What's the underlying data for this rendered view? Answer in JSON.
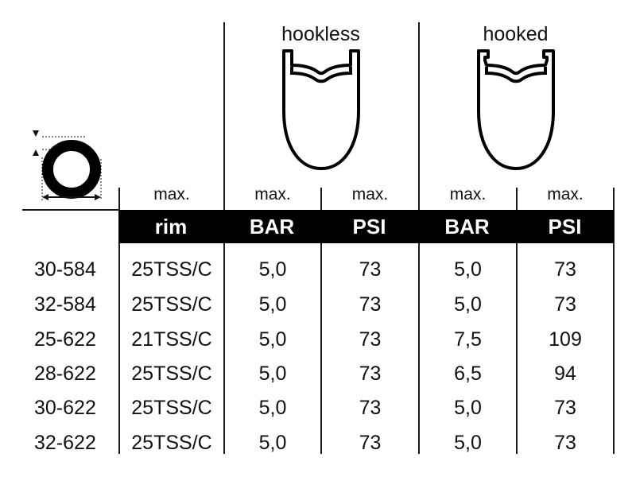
{
  "groups": {
    "hookless": "hookless",
    "hooked": "hooked"
  },
  "max_labels": [
    "max.",
    "max.",
    "max.",
    "max.",
    "max."
  ],
  "headers": [
    "rim",
    "BAR",
    "PSI",
    "BAR",
    "PSI"
  ],
  "rows": [
    {
      "size": "30-584",
      "rim": "25TSS/C",
      "hookless_bar": "5,0",
      "hookless_psi": "73",
      "hooked_bar": "5,0",
      "hooked_psi": "73"
    },
    {
      "size": "32-584",
      "rim": "25TSS/C",
      "hookless_bar": "5,0",
      "hookless_psi": "73",
      "hooked_bar": "5,0",
      "hooked_psi": "73"
    },
    {
      "size": "25-622",
      "rim": "21TSS/C",
      "hookless_bar": "5,0",
      "hookless_psi": "73",
      "hooked_bar": "7,5",
      "hooked_psi": "109"
    },
    {
      "size": "28-622",
      "rim": "25TSS/C",
      "hookless_bar": "5,0",
      "hookless_psi": "73",
      "hooked_bar": "6,5",
      "hooked_psi": "94"
    },
    {
      "size": "30-622",
      "rim": "25TSS/C",
      "hookless_bar": "5,0",
      "hookless_psi": "73",
      "hooked_bar": "5,0",
      "hooked_psi": "73"
    },
    {
      "size": "32-622",
      "rim": "25TSS/C",
      "hookless_bar": "5,0",
      "hookless_psi": "73",
      "hooked_bar": "5,0",
      "hooked_psi": "73"
    }
  ],
  "icons": {
    "tire": "tire-cross-section-icon",
    "hookless_rim": "hookless-rim-profile-icon",
    "hooked_rim": "hooked-rim-profile-icon"
  }
}
